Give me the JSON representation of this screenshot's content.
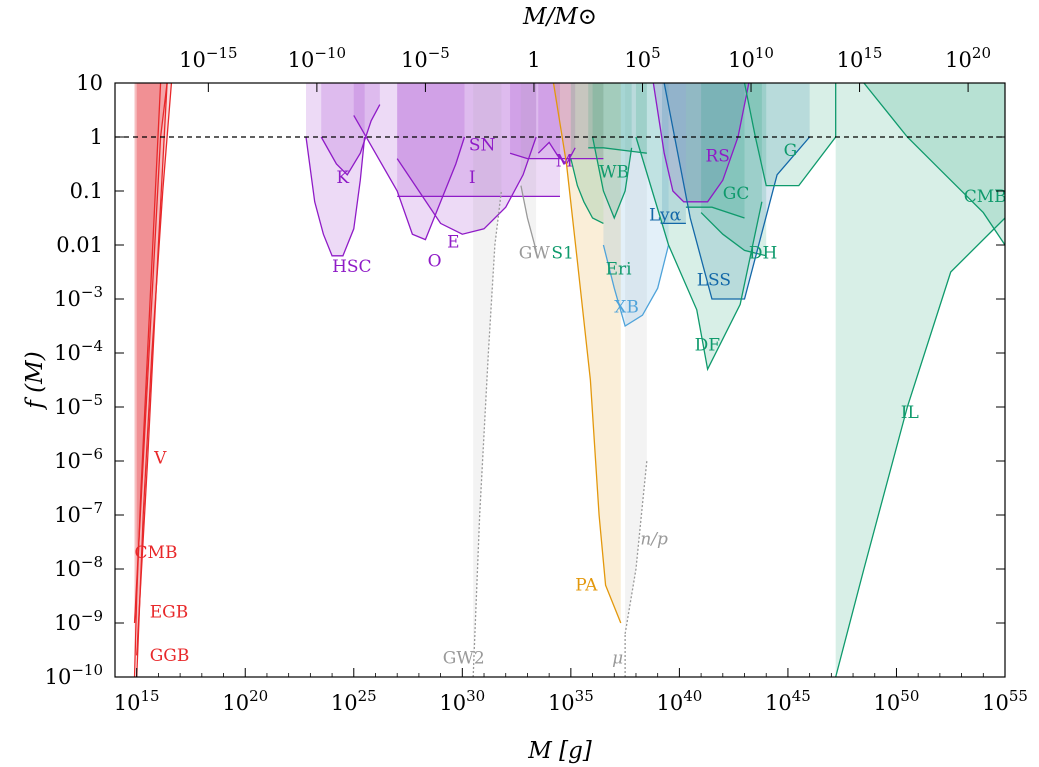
{
  "chart_data": {
    "type": "line",
    "xlabel": "M [g]",
    "ylabel": "f (M)",
    "top_xlabel": "M/M⊙",
    "x_scale": "log",
    "y_scale": "log",
    "xlim_log10_g": [
      14,
      55
    ],
    "ylim_log10": [
      -10,
      1
    ],
    "bottom_ticks": [
      {
        "exp": 15,
        "label": "10",
        "sup": "15"
      },
      {
        "exp": 20,
        "label": "10",
        "sup": "20"
      },
      {
        "exp": 25,
        "label": "10",
        "sup": "25"
      },
      {
        "exp": 30,
        "label": "10",
        "sup": "30"
      },
      {
        "exp": 35,
        "label": "10",
        "sup": "35"
      },
      {
        "exp": 40,
        "label": "10",
        "sup": "40"
      },
      {
        "exp": 45,
        "label": "10",
        "sup": "45"
      },
      {
        "exp": 50,
        "label": "10",
        "sup": "50"
      },
      {
        "exp": 55,
        "label": "10",
        "sup": "55"
      }
    ],
    "top_ticks": [
      {
        "exp": -15,
        "label": "10",
        "sup": "−15"
      },
      {
        "exp": -10,
        "label": "10",
        "sup": "−10"
      },
      {
        "exp": -5,
        "label": "10",
        "sup": "−5"
      },
      {
        "exp": 0,
        "label": "1",
        "sup": ""
      },
      {
        "exp": 5,
        "label": "10",
        "sup": "5"
      },
      {
        "exp": 10,
        "label": "10",
        "sup": "10"
      },
      {
        "exp": 15,
        "label": "10",
        "sup": "15"
      },
      {
        "exp": 20,
        "label": "10",
        "sup": "20"
      }
    ],
    "y_ticks": [
      {
        "exp": 1,
        "label": "10",
        "sup": ""
      },
      {
        "exp": 0,
        "label": "1",
        "sup": ""
      },
      {
        "exp": -1,
        "label": "0.1",
        "sup": ""
      },
      {
        "exp": -2,
        "label": "0.01",
        "sup": ""
      },
      {
        "exp": -3,
        "label": "10",
        "sup": "−3"
      },
      {
        "exp": -4,
        "label": "10",
        "sup": "−4"
      },
      {
        "exp": -5,
        "label": "10",
        "sup": "−5"
      },
      {
        "exp": -6,
        "label": "10",
        "sup": "−6"
      },
      {
        "exp": -7,
        "label": "10",
        "sup": "−7"
      },
      {
        "exp": -8,
        "label": "10",
        "sup": "−8"
      },
      {
        "exp": -9,
        "label": "10",
        "sup": "−9"
      },
      {
        "exp": -10,
        "label": "10",
        "sup": "−10"
      }
    ],
    "reference_line": {
      "y_log10": 0,
      "style": "dashed"
    },
    "colors": {
      "evaporation": "#e8282a",
      "lensing": "#8f1bc7",
      "gw": "#999999",
      "accretion": "#e3980c",
      "dynamical": "#0f9a6c",
      "xray": "#4fa3da",
      "lss": "#1368a8"
    },
    "constraints": [
      {
        "name": "V",
        "group": "evaporation",
        "points": [
          [
            14.9,
            -10
          ],
          [
            15.0,
            -8.5
          ],
          [
            15.2,
            -6.5
          ],
          [
            15.5,
            -4
          ],
          [
            15.8,
            -1.5
          ],
          [
            16.1,
            1
          ]
        ]
      },
      {
        "name": "CMB",
        "group": "evaporation",
        "points": [
          [
            14.9,
            -9
          ],
          [
            15.3,
            -6
          ],
          [
            15.7,
            -3
          ],
          [
            16.1,
            0
          ],
          [
            16.4,
            1
          ]
        ]
      },
      {
        "name": "EGB",
        "group": "evaporation",
        "points": [
          [
            15.0,
            -10
          ],
          [
            15.3,
            -7
          ],
          [
            15.7,
            -4
          ],
          [
            16.2,
            -1
          ],
          [
            16.6,
            1
          ]
        ]
      },
      {
        "name": "GGB",
        "group": "evaporation",
        "points": [
          [
            15.0,
            -9.6
          ],
          [
            15.5,
            -6
          ],
          [
            16.0,
            -2
          ],
          [
            16.4,
            1
          ]
        ]
      },
      {
        "name": "HSC",
        "group": "lensing",
        "points": [
          [
            22.8,
            0
          ],
          [
            23.2,
            -1.2
          ],
          [
            23.6,
            -1.8
          ],
          [
            24.0,
            -2.2
          ],
          [
            24.5,
            -2.2
          ],
          [
            25.0,
            -1.7
          ],
          [
            25.3,
            -0.8
          ],
          [
            25.5,
            0
          ]
        ]
      },
      {
        "name": "K",
        "group": "lensing",
        "points": [
          [
            23.5,
            0
          ],
          [
            24.2,
            -0.5
          ],
          [
            24.7,
            -0.7
          ],
          [
            25.3,
            -0.3
          ],
          [
            25.8,
            0.3
          ],
          [
            26.2,
            0.6
          ]
        ]
      },
      {
        "name": "O",
        "group": "lensing",
        "points": [
          [
            25.0,
            0.4
          ],
          [
            26.0,
            -0.3
          ],
          [
            27.0,
            -1.0
          ],
          [
            27.7,
            -1.8
          ],
          [
            28.3,
            -1.9
          ],
          [
            29.0,
            -1.2
          ],
          [
            29.7,
            -0.5
          ],
          [
            30.1,
            0
          ]
        ]
      },
      {
        "name": "E",
        "group": "lensing",
        "points": [
          [
            27.0,
            -0.4
          ],
          [
            28.0,
            -1.0
          ],
          [
            29.0,
            -1.6
          ],
          [
            30.0,
            -1.8
          ],
          [
            31.0,
            -1.7
          ],
          [
            32.0,
            -1.3
          ],
          [
            32.8,
            -0.7
          ],
          [
            33.4,
            0
          ]
        ]
      },
      {
        "name": "SN",
        "group": "lensing",
        "points": [
          [
            32.2,
            -0.3
          ],
          [
            33.0,
            -0.4
          ],
          [
            34.0,
            -0.4
          ],
          [
            35.0,
            -0.4
          ],
          [
            36.5,
            -0.4
          ]
        ]
      },
      {
        "name": "I",
        "group": "lensing",
        "points": [
          [
            27.0,
            -1.1
          ],
          [
            34.5,
            -1.1
          ]
        ]
      },
      {
        "name": "M",
        "group": "lensing",
        "points": [
          [
            33.5,
            -0.3
          ],
          [
            34.0,
            -0.1
          ],
          [
            34.4,
            -0.35
          ],
          [
            34.8,
            -0.5
          ],
          [
            35.2,
            -0.2
          ]
        ]
      },
      {
        "name": "RS",
        "group": "lensing",
        "points": [
          [
            38.8,
            1
          ],
          [
            39.3,
            -0.3
          ],
          [
            39.7,
            -1.0
          ],
          [
            40.2,
            -1.2
          ],
          [
            41.3,
            -1.2
          ],
          [
            42.0,
            -0.8
          ],
          [
            42.7,
            0
          ],
          [
            43.2,
            1
          ]
        ]
      },
      {
        "name": "GW",
        "group": "gw",
        "points": [
          [
            32.7,
            -0.9
          ],
          [
            33.0,
            -1.5
          ],
          [
            33.4,
            -2.1
          ]
        ]
      },
      {
        "name": "GW2",
        "group": "gw",
        "points": [
          [
            30.5,
            -10
          ],
          [
            30.8,
            -7
          ],
          [
            31.2,
            -4
          ],
          [
            31.5,
            -2
          ],
          [
            31.8,
            -1
          ]
        ]
      },
      {
        "name": "n/p",
        "group": "gw",
        "points": [
          [
            37.5,
            -9.2
          ],
          [
            38.0,
            -8
          ],
          [
            38.5,
            -6
          ]
        ]
      },
      {
        "name": "μ",
        "group": "gw",
        "points": [
          [
            37.5,
            -10
          ],
          [
            37.5,
            -9.2
          ]
        ]
      },
      {
        "name": "PA",
        "group": "accretion",
        "points": [
          [
            34.2,
            1
          ],
          [
            34.8,
            -0.5
          ],
          [
            35.3,
            -2.3
          ],
          [
            35.9,
            -4.5
          ],
          [
            36.3,
            -7
          ],
          [
            36.6,
            -8.3
          ],
          [
            37.3,
            -9.0
          ]
        ]
      },
      {
        "name": "S1",
        "group": "dynamical",
        "points": [
          [
            35.0,
            -0.4
          ],
          [
            35.3,
            -0.9
          ],
          [
            35.6,
            -1.2
          ],
          [
            36.0,
            -1.5
          ],
          [
            36.5,
            -1.6
          ]
        ]
      },
      {
        "name": "WB",
        "group": "dynamical",
        "points": [
          [
            35.8,
            -0.2
          ],
          [
            36.5,
            -0.2
          ],
          [
            38.5,
            -0.3
          ]
        ]
      },
      {
        "name": "Eri",
        "group": "dynamical",
        "points": [
          [
            36.0,
            0
          ],
          [
            36.5,
            -1.0
          ],
          [
            37.0,
            -1.5
          ],
          [
            37.5,
            -1.0
          ],
          [
            37.8,
            -0.2
          ]
        ]
      },
      {
        "name": "Lyα",
        "group": "lss",
        "points": [
          [
            39.2,
            -1.6
          ],
          [
            40.3,
            -1.6
          ]
        ]
      },
      {
        "name": "XB",
        "group": "xray",
        "points": [
          [
            36.5,
            -2.0
          ],
          [
            37.0,
            -2.8
          ],
          [
            37.5,
            -3.5
          ],
          [
            38.3,
            -3.3
          ],
          [
            39.0,
            -2.8
          ],
          [
            39.5,
            -2.0
          ]
        ]
      },
      {
        "name": "GC",
        "group": "dynamical",
        "points": [
          [
            40.3,
            -1.3
          ],
          [
            41.5,
            -1.3
          ],
          [
            43.0,
            -1.5
          ]
        ]
      },
      {
        "name": "DH",
        "group": "dynamical",
        "points": [
          [
            41.0,
            -1.4
          ],
          [
            42.0,
            -1.8
          ],
          [
            43.0,
            -2.1
          ],
          [
            44.0,
            -2.2
          ]
        ]
      },
      {
        "name": "LSS",
        "group": "lss",
        "points": [
          [
            39.3,
            1
          ],
          [
            40.5,
            -1.5
          ],
          [
            41.5,
            -3.0
          ],
          [
            43.0,
            -3.0
          ],
          [
            44.5,
            -0.7
          ],
          [
            46.0,
            0
          ]
        ]
      },
      {
        "name": "DF",
        "group": "dynamical",
        "points": [
          [
            38.0,
            0
          ],
          [
            39.5,
            -2.0
          ],
          [
            40.8,
            -3.2
          ],
          [
            41.3,
            -4.3
          ],
          [
            42.8,
            -3.1
          ],
          [
            43.8,
            -1.2
          ]
        ]
      },
      {
        "name": "G",
        "group": "dynamical",
        "points": [
          [
            43.0,
            1
          ],
          [
            43.5,
            0
          ],
          [
            44.0,
            -0.9
          ],
          [
            45.5,
            -0.9
          ],
          [
            47.2,
            0
          ],
          [
            47.2,
            1
          ]
        ]
      },
      {
        "name": "CMB",
        "group": "dynamical",
        "points": [
          [
            48.5,
            1
          ],
          [
            50.5,
            0
          ],
          [
            52.0,
            -0.6
          ],
          [
            54.0,
            -1.4
          ],
          [
            55.0,
            -2.0
          ]
        ]
      },
      {
        "name": "IL",
        "group": "dynamical",
        "points": [
          [
            47.2,
            -10
          ],
          [
            48.5,
            -8
          ],
          [
            50.5,
            -5
          ],
          [
            52.5,
            -2.5
          ],
          [
            55.0,
            -1.5
          ]
        ]
      }
    ],
    "labels": [
      {
        "text": "V",
        "x": 15.8,
        "y": -6.05,
        "group": "evaporation"
      },
      {
        "text": "CMB",
        "x": 14.9,
        "y": -7.8,
        "group": "evaporation"
      },
      {
        "text": "EGB",
        "x": 15.6,
        "y": -8.9,
        "group": "evaporation"
      },
      {
        "text": "GGB",
        "x": 15.6,
        "y": -9.7,
        "group": "evaporation"
      },
      {
        "text": "HSC",
        "x": 24.0,
        "y": -2.5,
        "group": "lensing"
      },
      {
        "text": "K",
        "x": 24.2,
        "y": -0.85,
        "group": "lensing"
      },
      {
        "text": "O",
        "x": 28.4,
        "y": -2.4,
        "group": "lensing"
      },
      {
        "text": "E",
        "x": 29.3,
        "y": -2.05,
        "group": "lensing"
      },
      {
        "text": "SN",
        "x": 30.3,
        "y": -0.25,
        "group": "lensing"
      },
      {
        "text": "I",
        "x": 30.3,
        "y": -0.85,
        "group": "lensing"
      },
      {
        "text": "M",
        "x": 34.3,
        "y": -0.55,
        "group": "lensing"
      },
      {
        "text": "RS",
        "x": 41.2,
        "y": -0.45,
        "group": "lensing"
      },
      {
        "text": "GW",
        "x": 32.6,
        "y": -2.25,
        "group": "gw"
      },
      {
        "text": "GW2",
        "x": 29.1,
        "y": -9.75,
        "group": "gw"
      },
      {
        "text": "n/p",
        "x": 38.2,
        "y": -7.55,
        "group": "gw"
      },
      {
        "text": "μ",
        "x": 36.9,
        "y": -9.75,
        "group": "gw"
      },
      {
        "text": "PA",
        "x": 35.2,
        "y": -8.4,
        "group": "accretion"
      },
      {
        "text": "S1",
        "x": 34.1,
        "y": -2.25,
        "group": "dynamical"
      },
      {
        "text": "WB",
        "x": 36.3,
        "y": -0.75,
        "group": "dynamical"
      },
      {
        "text": "Eri",
        "x": 36.6,
        "y": -2.55,
        "group": "dynamical"
      },
      {
        "text": "Lyα",
        "x": 38.6,
        "y": -1.55,
        "group": "lss"
      },
      {
        "text": "XB",
        "x": 37.0,
        "y": -3.25,
        "group": "xray"
      },
      {
        "text": "GC",
        "x": 42.0,
        "y": -1.15,
        "group": "dynamical"
      },
      {
        "text": "DH",
        "x": 43.2,
        "y": -2.25,
        "group": "dynamical"
      },
      {
        "text": "LSS",
        "x": 40.8,
        "y": -2.75,
        "group": "lss"
      },
      {
        "text": "DF",
        "x": 40.7,
        "y": -3.95,
        "group": "dynamical"
      },
      {
        "text": "G",
        "x": 44.8,
        "y": -0.35,
        "group": "dynamical"
      },
      {
        "text": "CMB",
        "x": 53.1,
        "y": -1.2,
        "group": "dynamical"
      },
      {
        "text": "IL",
        "x": 50.2,
        "y": -5.2,
        "group": "dynamical"
      }
    ]
  }
}
